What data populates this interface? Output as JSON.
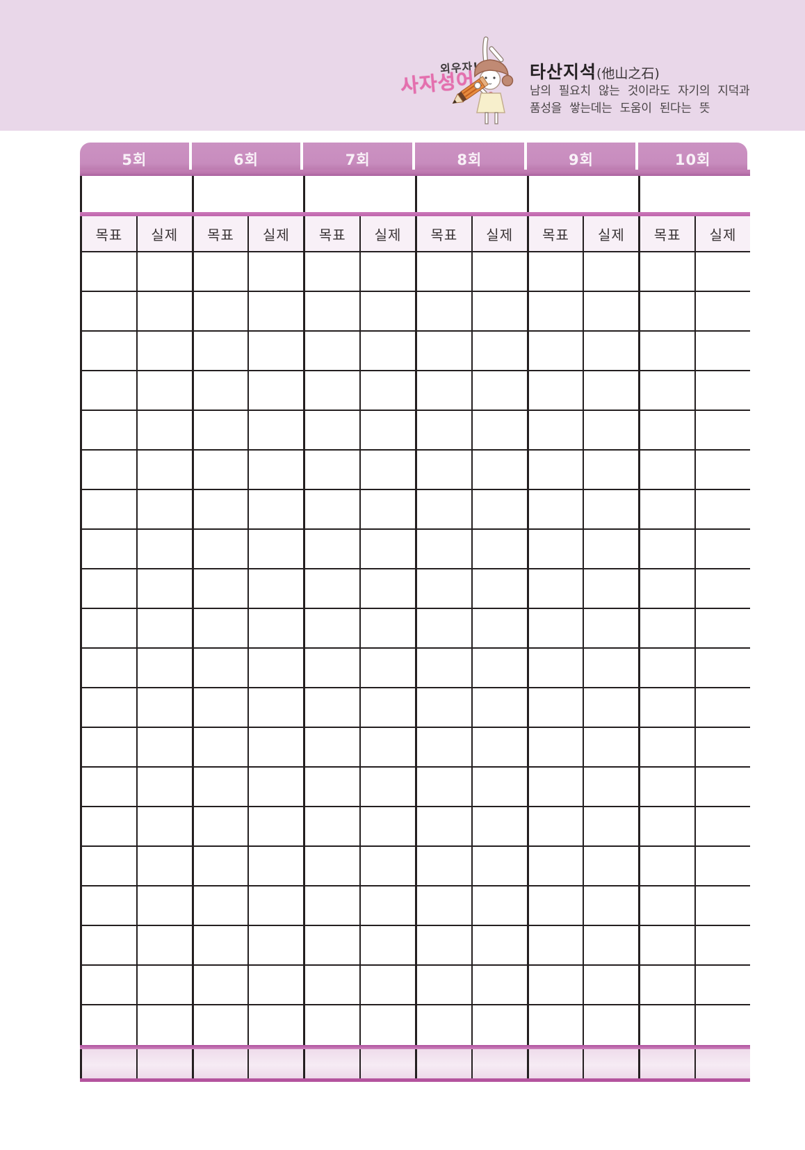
{
  "banner": {
    "memorize_label": "외우자!",
    "series_label": "사자성어",
    "idiom_title": "타산지석",
    "idiom_hanja": "(他山之石)",
    "meaning_line1": "남의 필요치 않는 것이라도 자기의 지덕과",
    "meaning_line2": "품성을 쌓는데는 도움이 된다는 뜻",
    "colors": {
      "banner_bg": "#e9d7e9",
      "series_label_pink": "#e46fae"
    }
  },
  "table": {
    "sessions": [
      {
        "label": "5회"
      },
      {
        "label": "6회"
      },
      {
        "label": "7회"
      },
      {
        "label": "8회"
      },
      {
        "label": "9회"
      },
      {
        "label": "10회"
      }
    ],
    "goal_label": "목표",
    "actual_label": "실제",
    "data_rows": 20,
    "cell_value": "",
    "colors": {
      "tab_pink": "#c98fc0",
      "tab_strip_dark": "#aa5f9e",
      "divider_pink": "#c569b2",
      "subheader_bg": "#f8f0f7",
      "footer_bg": "#f1e0ee",
      "grid_line": "#241f20"
    }
  }
}
